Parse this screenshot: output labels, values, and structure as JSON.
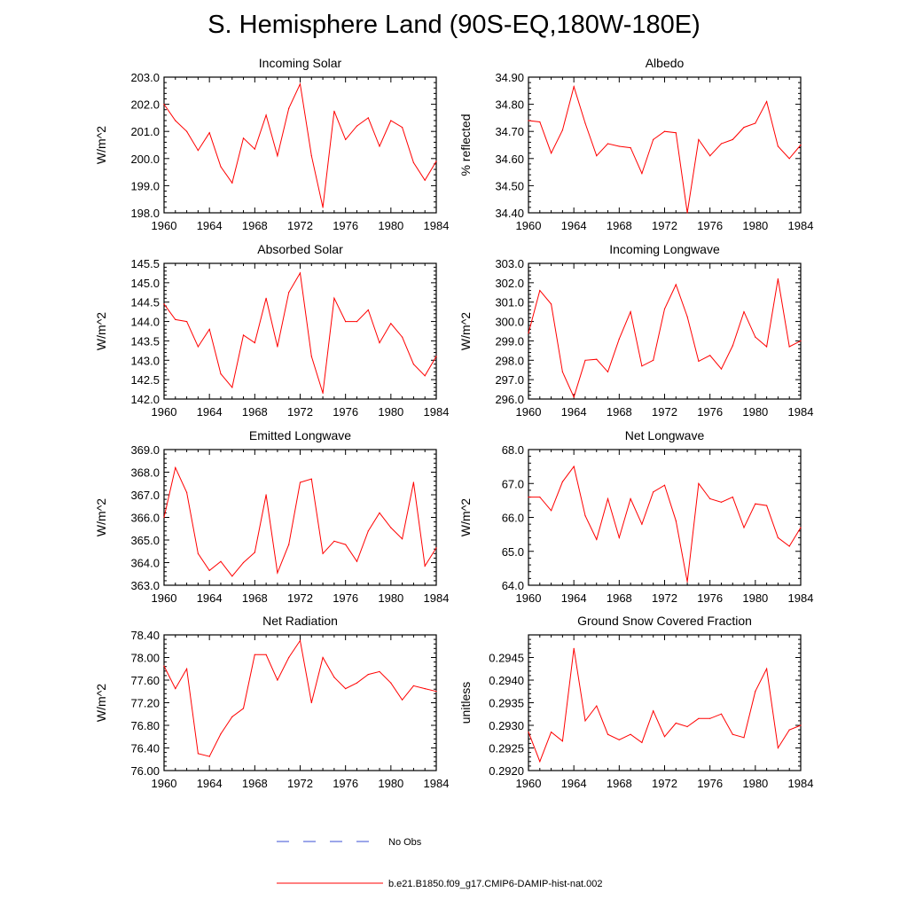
{
  "page": {
    "title": "S. Hemisphere Land (90S-EQ,180W-180E)"
  },
  "colors": {
    "model": "#ff0000",
    "obs": "#3a4fd6",
    "axis": "#000000"
  },
  "legend": {
    "items": [
      {
        "label": "No Obs",
        "style": "dashed",
        "color": "#3a4fd6"
      },
      {
        "label": "b.e21.B1850.f09_g17.CMIP6-DAMIP-hist-nat.002",
        "style": "solid",
        "color": "#ff0000"
      }
    ]
  },
  "chart_data": [
    {
      "type": "line",
      "title": "Incoming Solar",
      "xlabel": "",
      "ylabel": "W/m^2",
      "xlim": [
        1960,
        1984
      ],
      "ylim": [
        198.0,
        203.0
      ],
      "xticks": [
        "1960",
        "1964",
        "1968",
        "1972",
        "1976",
        "1980",
        "1984"
      ],
      "yticks": [
        "198.0",
        "199.0",
        "200.0",
        "201.0",
        "202.0",
        "203.0"
      ],
      "x": [
        1960,
        1961,
        1962,
        1963,
        1964,
        1965,
        1966,
        1967,
        1968,
        1969,
        1970,
        1971,
        1972,
        1973,
        1974,
        1975,
        1976,
        1977,
        1978,
        1979,
        1980,
        1981,
        1982,
        1983,
        1984
      ],
      "series": [
        {
          "values": [
            202.0,
            201.4,
            201.0,
            200.3,
            200.95,
            199.7,
            199.1,
            200.75,
            200.35,
            201.6,
            200.1,
            201.85,
            202.75,
            200.1,
            198.2,
            201.75,
            200.7,
            201.2,
            201.5,
            200.45,
            201.4,
            201.15,
            199.85,
            199.2,
            199.9
          ]
        }
      ]
    },
    {
      "type": "line",
      "title": "Albedo",
      "xlabel": "",
      "ylabel": "% reflected",
      "xlim": [
        1960,
        1984
      ],
      "ylim": [
        34.4,
        34.9
      ],
      "xticks": [
        "1960",
        "1964",
        "1968",
        "1972",
        "1976",
        "1980",
        "1984"
      ],
      "yticks": [
        "34.40",
        "34.50",
        "34.60",
        "34.70",
        "34.80",
        "34.90"
      ],
      "x": [
        1960,
        1961,
        1962,
        1963,
        1964,
        1965,
        1966,
        1967,
        1968,
        1969,
        1970,
        1971,
        1972,
        1973,
        1974,
        1975,
        1976,
        1977,
        1978,
        1979,
        1980,
        1981,
        1982,
        1983,
        1984
      ],
      "series": [
        {
          "values": [
            34.74,
            34.735,
            34.62,
            34.705,
            34.865,
            34.73,
            34.61,
            34.655,
            34.645,
            34.64,
            34.545,
            34.67,
            34.7,
            34.695,
            34.4,
            34.67,
            34.61,
            34.655,
            34.67,
            34.715,
            34.73,
            34.81,
            34.645,
            34.6,
            34.65
          ]
        }
      ]
    },
    {
      "type": "line",
      "title": "Absorbed Solar",
      "xlabel": "",
      "ylabel": "W/m^2",
      "xlim": [
        1960,
        1984
      ],
      "ylim": [
        142.0,
        145.5
      ],
      "xticks": [
        "1960",
        "1964",
        "1968",
        "1972",
        "1976",
        "1980",
        "1984"
      ],
      "yticks": [
        "142.0",
        "142.5",
        "143.0",
        "143.5",
        "144.0",
        "144.5",
        "145.0",
        "145.5"
      ],
      "x": [
        1960,
        1961,
        1962,
        1963,
        1964,
        1965,
        1966,
        1967,
        1968,
        1969,
        1970,
        1971,
        1972,
        1973,
        1974,
        1975,
        1976,
        1977,
        1978,
        1979,
        1980,
        1981,
        1982,
        1983,
        1984
      ],
      "series": [
        {
          "values": [
            144.45,
            144.05,
            144.0,
            143.35,
            143.8,
            142.65,
            142.3,
            143.65,
            143.45,
            144.6,
            143.35,
            144.75,
            145.25,
            143.1,
            142.15,
            144.6,
            144.0,
            144.0,
            144.3,
            143.45,
            143.95,
            143.6,
            142.9,
            142.6,
            143.1
          ]
        }
      ]
    },
    {
      "type": "line",
      "title": "Incoming Longwave",
      "xlabel": "",
      "ylabel": "W/m^2",
      "xlim": [
        1960,
        1984
      ],
      "ylim": [
        296.0,
        303.0
      ],
      "xticks": [
        "1960",
        "1964",
        "1968",
        "1972",
        "1976",
        "1980",
        "1984"
      ],
      "yticks": [
        "296.0",
        "297.0",
        "298.0",
        "299.0",
        "300.0",
        "301.0",
        "302.0",
        "303.0"
      ],
      "x": [
        1960,
        1961,
        1962,
        1963,
        1964,
        1965,
        1966,
        1967,
        1968,
        1969,
        1970,
        1971,
        1972,
        1973,
        1974,
        1975,
        1976,
        1977,
        1978,
        1979,
        1980,
        1981,
        1982,
        1983,
        1984
      ],
      "series": [
        {
          "values": [
            299.4,
            301.6,
            300.9,
            297.4,
            296.1,
            298.0,
            298.05,
            297.4,
            299.1,
            300.5,
            297.7,
            298.0,
            300.65,
            301.9,
            300.25,
            297.95,
            298.25,
            297.55,
            298.75,
            300.5,
            299.2,
            298.7,
            302.2,
            298.7,
            299.0
          ]
        }
      ]
    },
    {
      "type": "line",
      "title": "Emitted Longwave",
      "xlabel": "",
      "ylabel": "W/m^2",
      "xlim": [
        1960,
        1984
      ],
      "ylim": [
        363.0,
        369.0
      ],
      "xticks": [
        "1960",
        "1964",
        "1968",
        "1972",
        "1976",
        "1980",
        "1984"
      ],
      "yticks": [
        "363.0",
        "364.0",
        "365.0",
        "366.0",
        "367.0",
        "368.0",
        "369.0"
      ],
      "x": [
        1960,
        1961,
        1962,
        1963,
        1964,
        1965,
        1966,
        1967,
        1968,
        1969,
        1970,
        1971,
        1972,
        1973,
        1974,
        1975,
        1976,
        1977,
        1978,
        1979,
        1980,
        1981,
        1982,
        1983,
        1984
      ],
      "series": [
        {
          "values": [
            366.0,
            368.2,
            367.1,
            364.4,
            363.65,
            364.05,
            363.4,
            364.0,
            364.45,
            367.0,
            363.55,
            364.8,
            367.55,
            367.7,
            364.4,
            364.95,
            364.8,
            364.05,
            365.4,
            366.2,
            365.55,
            365.05,
            367.55,
            363.85,
            364.65
          ]
        }
      ]
    },
    {
      "type": "line",
      "title": "Net Longwave",
      "xlabel": "",
      "ylabel": "W/m^2",
      "xlim": [
        1960,
        1984
      ],
      "ylim": [
        64.0,
        68.0
      ],
      "xticks": [
        "1960",
        "1964",
        "1968",
        "1972",
        "1976",
        "1980",
        "1984"
      ],
      "yticks": [
        "64.0",
        "65.0",
        "66.0",
        "67.0",
        "68.0"
      ],
      "x": [
        1960,
        1961,
        1962,
        1963,
        1964,
        1965,
        1966,
        1967,
        1968,
        1969,
        1970,
        1971,
        1972,
        1973,
        1974,
        1975,
        1976,
        1977,
        1978,
        1979,
        1980,
        1981,
        1982,
        1983,
        1984
      ],
      "series": [
        {
          "values": [
            66.6,
            66.6,
            66.2,
            67.05,
            67.5,
            66.05,
            65.35,
            66.55,
            65.4,
            66.55,
            65.8,
            66.75,
            66.95,
            65.9,
            64.1,
            67.0,
            66.55,
            66.45,
            66.6,
            65.7,
            66.4,
            66.35,
            65.4,
            65.15,
            65.7
          ]
        }
      ]
    },
    {
      "type": "line",
      "title": "Net Radiation",
      "xlabel": "",
      "ylabel": "W/m^2",
      "xlim": [
        1960,
        1984
      ],
      "ylim": [
        76.0,
        78.4
      ],
      "xticks": [
        "1960",
        "1964",
        "1968",
        "1972",
        "1976",
        "1980",
        "1984"
      ],
      "yticks": [
        "76.00",
        "76.40",
        "76.80",
        "77.20",
        "77.60",
        "78.00",
        "78.40"
      ],
      "x": [
        1960,
        1961,
        1962,
        1963,
        1964,
        1965,
        1966,
        1967,
        1968,
        1969,
        1970,
        1971,
        1972,
        1973,
        1974,
        1975,
        1976,
        1977,
        1978,
        1979,
        1980,
        1981,
        1982,
        1983,
        1984
      ],
      "series": [
        {
          "values": [
            77.85,
            77.45,
            77.8,
            76.3,
            76.25,
            76.65,
            76.95,
            77.1,
            78.05,
            78.05,
            77.6,
            78.0,
            78.3,
            77.2,
            78.0,
            77.65,
            77.45,
            77.55,
            77.7,
            77.75,
            77.55,
            77.25,
            77.5,
            77.45,
            77.4
          ]
        }
      ]
    },
    {
      "type": "line",
      "title": "Ground Snow Covered Fraction",
      "xlabel": "",
      "ylabel": "unitless",
      "xlim": [
        1960,
        1984
      ],
      "ylim": [
        0.292,
        0.295
      ],
      "xticks": [
        "1960",
        "1964",
        "1968",
        "1972",
        "1976",
        "1980",
        "1984"
      ],
      "yticks": [
        "0.2920",
        "0.2925",
        "0.2930",
        "0.2935",
        "0.2940",
        "0.2945"
      ],
      "x": [
        1960,
        1961,
        1962,
        1963,
        1964,
        1965,
        1966,
        1967,
        1968,
        1969,
        1970,
        1971,
        1972,
        1973,
        1974,
        1975,
        1976,
        1977,
        1978,
        1979,
        1980,
        1981,
        1982,
        1983,
        1984
      ],
      "series": [
        {
          "values": [
            0.29285,
            0.2922,
            0.29285,
            0.29265,
            0.2947,
            0.2931,
            0.29343,
            0.2928,
            0.29268,
            0.2928,
            0.29262,
            0.29332,
            0.29275,
            0.29305,
            0.29297,
            0.29315,
            0.29315,
            0.29325,
            0.2928,
            0.29273,
            0.29375,
            0.29425,
            0.2925,
            0.2929,
            0.293
          ]
        }
      ]
    }
  ]
}
